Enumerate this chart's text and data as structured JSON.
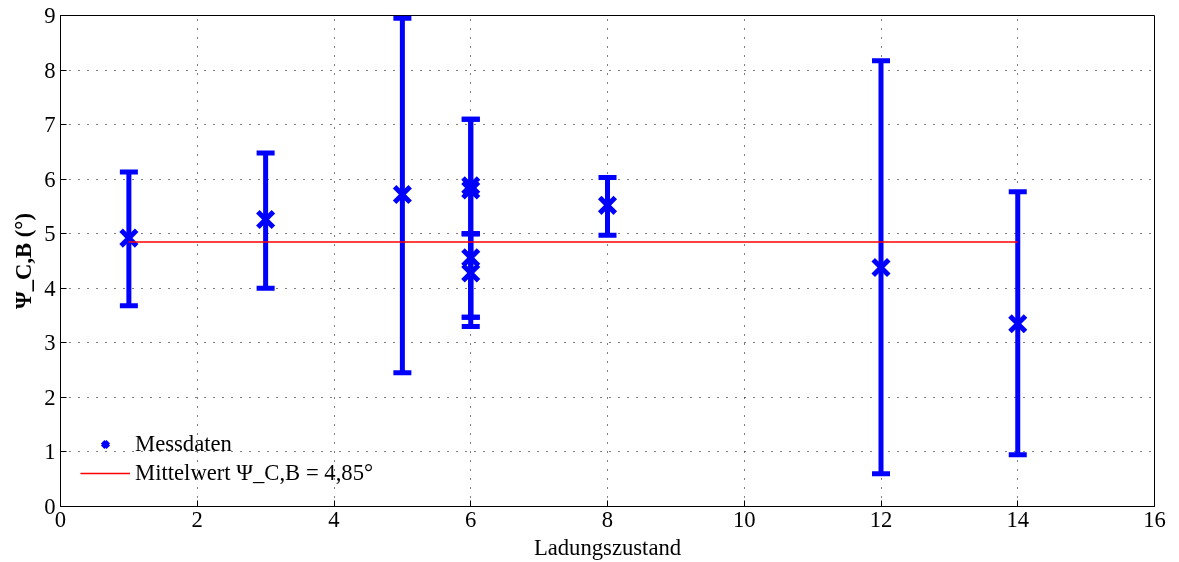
{
  "chart_data": {
    "type": "scatter",
    "xlabel": "Ladungszustand",
    "ylabel": "Ψ_C,B (°)",
    "xlim": [
      0,
      16
    ],
    "xticks": [
      0,
      2,
      4,
      6,
      8,
      10,
      12,
      14,
      16
    ],
    "ylim": [
      0,
      9
    ],
    "yticks": [
      0,
      1,
      2,
      3,
      4,
      5,
      6,
      7,
      8,
      9
    ],
    "grid": true,
    "legend": "bottom left",
    "series": [
      {
        "name": "Messdaten",
        "marker": "cross",
        "color": "#0000ff",
        "x": [
          1,
          3,
          5,
          6,
          6,
          6,
          6,
          8,
          12,
          14
        ],
        "values": [
          4.92,
          5.26,
          5.72,
          5.88,
          5.8,
          4.56,
          4.28,
          5.52,
          4.38,
          3.35
        ],
        "errors": [
          [
            3.68,
            6.13
          ],
          [
            4.0,
            6.48
          ],
          [
            2.45,
            8.95
          ],
          [
            5.0,
            7.1
          ],
          [
            3.47,
            7.1
          ],
          [
            3.47,
            5.0
          ],
          [
            3.3,
            5.0
          ],
          [
            4.97,
            6.03
          ],
          [
            0.6,
            8.17
          ],
          [
            0.95,
            5.77
          ]
        ]
      },
      {
        "name": "Mittelwert Ψ_C,B = 4,85°",
        "type": "line",
        "color": "#ff0000",
        "line_style": "solid",
        "x": [
          1,
          14
        ],
        "values": [
          4.85,
          4.85
        ]
      }
    ]
  }
}
